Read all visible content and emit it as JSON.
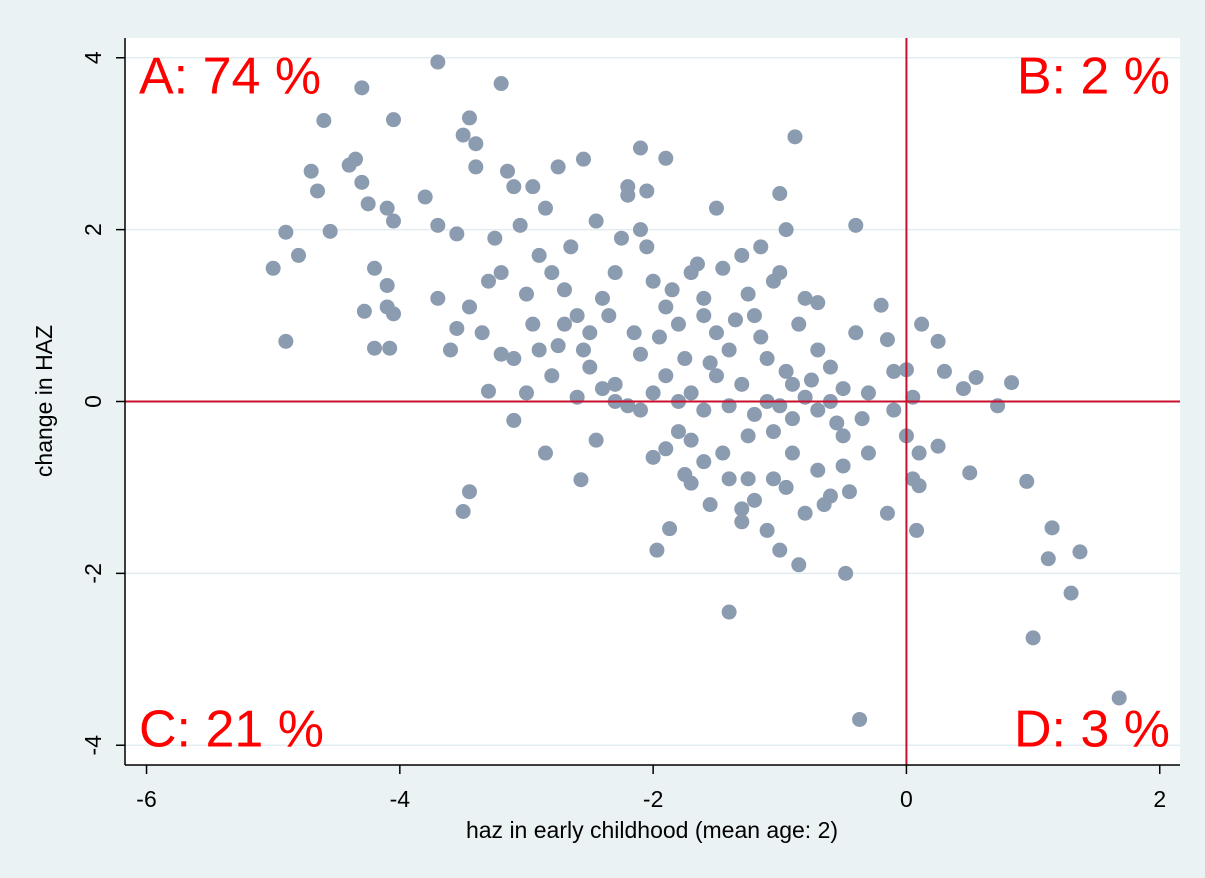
{
  "chart_data": {
    "type": "scatter",
    "x_label": "haz in early childhood (mean age: 2)",
    "y_label": "change in HAZ",
    "xlim": [
      -6.17,
      2.16
    ],
    "ylim": [
      -4.23,
      4.23
    ],
    "xticks": [
      -6,
      -4,
      -2,
      0,
      2
    ],
    "yticks": [
      -4,
      -2,
      0,
      2,
      4
    ],
    "grid": true,
    "color": "#8b9bb0",
    "reference_color": "#c8102e",
    "hlines": [
      0
    ],
    "vlines": [
      0
    ],
    "annotations": [
      {
        "text": "A: 74 %",
        "corner": "top-left"
      },
      {
        "text": "B: 2 %",
        "corner": "top-right"
      },
      {
        "text": "C: 21 %",
        "corner": "bottom-left"
      },
      {
        "text": "D: 3 %",
        "corner": "bottom-right"
      }
    ],
    "annotation_color": "#ff0000",
    "x": [
      -3.7,
      -4.3,
      -3.2,
      -4.6,
      -4.05,
      -3.45,
      -3.5,
      -3.4,
      -0.88,
      -4.35,
      -4.4,
      -4.7,
      -4.65,
      -4.3,
      -3.8,
      -3.15,
      -2.1,
      -1.9,
      -2.55,
      -2.75,
      -3.4,
      -4.25,
      -4.1,
      -4.05,
      -3.7,
      -3.55,
      -4.55,
      -4.9,
      -5,
      -4.8,
      -4.2,
      -4.1,
      -4.28,
      -4.1,
      -4.05,
      -4.9,
      -4.2,
      -4.08,
      -3.7,
      -3.6,
      -3.45,
      -3.3,
      -3.2,
      -3.0,
      -2.9,
      -2.8,
      -2.7,
      -2.6,
      -2.5,
      -2.4,
      -2.3,
      -2.2,
      -2.1,
      -2.0,
      -1.9,
      -1.8,
      -1.7,
      -1.6,
      -1.5,
      -1.4,
      -1.3,
      -1.2,
      -1.1,
      -1.0,
      -0.9,
      -0.8,
      -0.7,
      -0.6,
      -0.5,
      -0.4,
      -0.3,
      -0.2,
      -0.15,
      0.0,
      0.05,
      0.1,
      0.12,
      0.25,
      0.3,
      0.45,
      0.55,
      0.72,
      0.83,
      0.5,
      0.95,
      1.15,
      1.12,
      1.37,
      1.3,
      1.0,
      1.68,
      -0.37,
      -1.4,
      -0.48,
      -0.85,
      -1.0,
      -1.97,
      -1.87,
      -0.15,
      0.08,
      -3.5,
      -3.45,
      -2.57,
      -2.85,
      -3.3,
      -3.1,
      -2.45,
      -2.0,
      -1.9,
      -1.75,
      -1.7,
      -1.55,
      -1.3,
      -1.3,
      -1.1,
      -1.2,
      -0.8,
      -0.6,
      -0.5,
      -0.7,
      -0.9,
      -1.05,
      -1.25,
      -1.45,
      -1.6,
      -1.8,
      -2.1,
      -2.3,
      -2.6,
      -2.8,
      -3.0,
      -3.1,
      -2.9,
      -2.7,
      -2.5,
      -2.3,
      -2.1,
      -1.9,
      -1.7,
      -1.5,
      -1.3,
      -1.1,
      -0.9,
      -0.7,
      -0.5,
      -0.3,
      -0.1,
      0.0,
      0.05,
      0.1,
      0.25,
      -0.1,
      -0.4,
      -0.7,
      -0.85,
      -1.05,
      -1.25,
      -1.45,
      -1.65,
      -1.85,
      -2.05,
      -2.25,
      -2.45,
      -2.65,
      -2.85,
      -3.05,
      -3.25,
      -3.35,
      -3.55,
      -3.2,
      -2.95,
      -2.75,
      -2.55,
      -2.35,
      -2.15,
      -1.95,
      -1.75,
      -1.55,
      -1.35,
      -1.15,
      -0.95,
      -0.75,
      -0.55,
      -0.35,
      -0.6,
      -0.8,
      -1.0,
      -1.2,
      -1.4,
      -1.6,
      -1.8,
      -2.0,
      -2.2,
      -2.4,
      -1.25,
      -1.05,
      -0.95,
      -0.45,
      -0.65,
      -1.4,
      -1.7,
      -1.5,
      -1.0,
      -0.95,
      -1.15,
      -2.2,
      -2.05,
      -2.95,
      -3.1,
      -1.6
    ],
    "values": [
      3.95,
      3.65,
      3.7,
      3.27,
      3.28,
      3.3,
      3.1,
      3.0,
      3.08,
      2.82,
      2.75,
      2.68,
      2.45,
      2.55,
      2.38,
      2.68,
      2.95,
      2.83,
      2.82,
      2.73,
      2.73,
      2.3,
      2.25,
      2.1,
      2.05,
      1.95,
      1.98,
      1.97,
      1.55,
      1.7,
      1.55,
      1.35,
      1.05,
      1.1,
      1.02,
      0.7,
      0.62,
      0.62,
      1.2,
      0.6,
      1.1,
      1.4,
      1.5,
      1.25,
      1.7,
      1.5,
      1.3,
      1.0,
      0.8,
      1.2,
      1.5,
      2.4,
      2.0,
      1.4,
      1.1,
      0.9,
      1.5,
      1.2,
      0.8,
      0.6,
      1.7,
      1.0,
      0.5,
      1.5,
      0.2,
      1.2,
      0.6,
      0.4,
      -0.4,
      2.05,
      0.1,
      1.12,
      0.72,
      0.37,
      0.05,
      -0.6,
      0.9,
      0.7,
      0.35,
      0.15,
      0.28,
      -0.05,
      0.22,
      -0.83,
      -0.93,
      -1.47,
      -1.83,
      -1.75,
      -2.23,
      -2.75,
      -3.45,
      -3.7,
      -2.45,
      -2.0,
      -1.9,
      -1.73,
      -1.73,
      -1.48,
      -1.3,
      -1.5,
      -1.28,
      -1.05,
      -0.91,
      -0.6,
      0.12,
      -0.22,
      -0.45,
      -0.65,
      -0.55,
      -0.85,
      -0.95,
      -1.2,
      -1.25,
      -1.4,
      -1.5,
      -1.15,
      -1.3,
      -1.1,
      -0.75,
      -0.8,
      -0.6,
      -0.35,
      -0.4,
      -0.6,
      -0.7,
      -0.35,
      -0.1,
      0.0,
      0.05,
      0.3,
      0.1,
      0.5,
      0.6,
      0.9,
      0.4,
      0.2,
      0.55,
      0.3,
      0.1,
      0.3,
      0.2,
      0.0,
      -0.2,
      -0.1,
      0.15,
      -0.6,
      -0.1,
      -0.4,
      -0.9,
      -0.98,
      -0.52,
      0.35,
      0.8,
      1.15,
      0.9,
      1.4,
      1.25,
      1.55,
      1.6,
      1.3,
      1.8,
      1.9,
      2.1,
      1.8,
      2.25,
      2.05,
      1.9,
      0.8,
      0.85,
      0.55,
      0.9,
      0.65,
      0.6,
      1.0,
      0.8,
      0.75,
      0.5,
      0.45,
      0.95,
      0.75,
      0.35,
      0.25,
      -0.25,
      -0.2,
      0.0,
      0.05,
      -0.05,
      -0.15,
      -0.05,
      -0.1,
      0.0,
      0.1,
      -0.05,
      0.15,
      -0.9,
      -0.9,
      -1.0,
      -1.05,
      -1.2,
      -0.9,
      -0.45,
      2.25,
      2.42,
      2.0,
      1.8,
      2.5,
      2.45,
      2.5,
      2.5,
      1.0
    ]
  }
}
